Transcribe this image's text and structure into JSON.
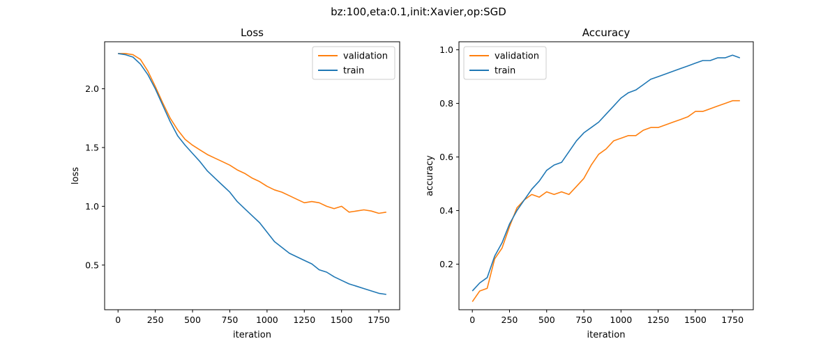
{
  "figure": {
    "suptitle": "bz:100,eta:0.1,init:Xavier,op:SGD"
  },
  "colors": {
    "validation": "#ff7f0e",
    "train": "#1f77b4"
  },
  "chart_data": [
    {
      "type": "line",
      "title": "Loss",
      "xlabel": "iteration",
      "ylabel": "loss",
      "xlim": [
        -90,
        1890
      ],
      "ylim": [
        0.12,
        2.4
      ],
      "xticks": [
        0,
        250,
        500,
        750,
        1000,
        1250,
        1500,
        1750
      ],
      "yticks": [
        0.5,
        1.0,
        1.5,
        2.0
      ],
      "ytick_labels": [
        "0.5",
        "1.0",
        "1.5",
        "2.0"
      ],
      "legend": {
        "placement": "upper-right",
        "entries": [
          "validation",
          "train"
        ]
      },
      "series": [
        {
          "name": "validation",
          "x": [
            0,
            50,
            100,
            150,
            200,
            250,
            300,
            350,
            400,
            450,
            500,
            550,
            600,
            650,
            700,
            750,
            800,
            850,
            900,
            950,
            1000,
            1050,
            1100,
            1150,
            1200,
            1250,
            1300,
            1350,
            1400,
            1450,
            1500,
            1550,
            1600,
            1650,
            1700,
            1750,
            1800
          ],
          "y": [
            2.3,
            2.3,
            2.29,
            2.25,
            2.15,
            2.02,
            1.88,
            1.75,
            1.65,
            1.57,
            1.52,
            1.48,
            1.44,
            1.41,
            1.38,
            1.35,
            1.31,
            1.28,
            1.24,
            1.21,
            1.17,
            1.14,
            1.12,
            1.09,
            1.06,
            1.03,
            1.04,
            1.03,
            1.0,
            0.98,
            1.0,
            0.95,
            0.96,
            0.97,
            0.96,
            0.94,
            0.95
          ]
        },
        {
          "name": "train",
          "x": [
            0,
            50,
            100,
            150,
            200,
            250,
            300,
            350,
            400,
            450,
            500,
            550,
            600,
            650,
            700,
            750,
            800,
            850,
            900,
            950,
            1000,
            1050,
            1100,
            1150,
            1200,
            1250,
            1300,
            1350,
            1400,
            1450,
            1500,
            1550,
            1600,
            1650,
            1700,
            1750,
            1800
          ],
          "y": [
            2.3,
            2.29,
            2.27,
            2.21,
            2.12,
            2.0,
            1.86,
            1.72,
            1.6,
            1.52,
            1.45,
            1.38,
            1.3,
            1.24,
            1.18,
            1.12,
            1.04,
            0.98,
            0.92,
            0.86,
            0.78,
            0.7,
            0.65,
            0.6,
            0.57,
            0.54,
            0.51,
            0.46,
            0.44,
            0.4,
            0.37,
            0.34,
            0.32,
            0.3,
            0.28,
            0.26,
            0.25
          ]
        }
      ]
    },
    {
      "type": "line",
      "title": "Accuracy",
      "xlabel": "iteration",
      "ylabel": "accuracy",
      "xlim": [
        -90,
        1890
      ],
      "ylim": [
        0.03,
        1.03
      ],
      "xticks": [
        0,
        250,
        500,
        750,
        1000,
        1250,
        1500,
        1750
      ],
      "yticks": [
        0.2,
        0.4,
        0.6,
        0.8,
        1.0
      ],
      "ytick_labels": [
        "0.2",
        "0.4",
        "0.6",
        "0.8",
        "1.0"
      ],
      "legend": {
        "placement": "upper-left",
        "entries": [
          "validation",
          "train"
        ]
      },
      "series": [
        {
          "name": "validation",
          "x": [
            0,
            50,
            100,
            150,
            200,
            250,
            300,
            350,
            400,
            450,
            500,
            550,
            600,
            650,
            700,
            750,
            800,
            850,
            900,
            950,
            1000,
            1050,
            1100,
            1150,
            1200,
            1250,
            1300,
            1350,
            1400,
            1450,
            1500,
            1550,
            1600,
            1650,
            1700,
            1750,
            1800
          ],
          "y": [
            0.06,
            0.1,
            0.11,
            0.22,
            0.26,
            0.34,
            0.41,
            0.44,
            0.46,
            0.45,
            0.47,
            0.46,
            0.47,
            0.46,
            0.49,
            0.52,
            0.57,
            0.61,
            0.63,
            0.66,
            0.67,
            0.68,
            0.68,
            0.7,
            0.71,
            0.71,
            0.72,
            0.73,
            0.74,
            0.75,
            0.77,
            0.77,
            0.78,
            0.79,
            0.8,
            0.81,
            0.81
          ]
        },
        {
          "name": "train",
          "x": [
            0,
            50,
            100,
            150,
            200,
            250,
            300,
            350,
            400,
            450,
            500,
            550,
            600,
            650,
            700,
            750,
            800,
            850,
            900,
            950,
            1000,
            1050,
            1100,
            1150,
            1200,
            1250,
            1300,
            1350,
            1400,
            1450,
            1500,
            1550,
            1600,
            1650,
            1700,
            1750,
            1800
          ],
          "y": [
            0.1,
            0.13,
            0.15,
            0.23,
            0.28,
            0.35,
            0.4,
            0.44,
            0.48,
            0.51,
            0.55,
            0.57,
            0.58,
            0.62,
            0.66,
            0.69,
            0.71,
            0.73,
            0.76,
            0.79,
            0.82,
            0.84,
            0.85,
            0.87,
            0.89,
            0.9,
            0.91,
            0.92,
            0.93,
            0.94,
            0.95,
            0.96,
            0.96,
            0.97,
            0.97,
            0.98,
            0.97
          ]
        }
      ]
    }
  ]
}
